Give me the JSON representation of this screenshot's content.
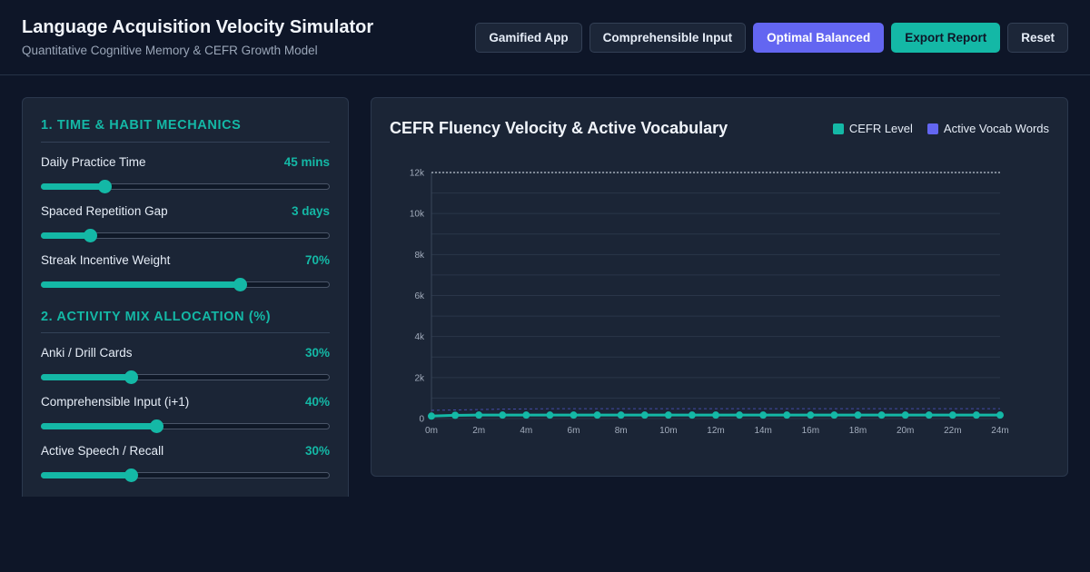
{
  "header": {
    "title": "Language Acquisition Velocity Simulator",
    "subtitle": "Quantitative Cognitive Memory & CEFR Growth Model",
    "buttons": {
      "gamified": "Gamified App",
      "comprehensible": "Comprehensible Input",
      "optimal": "Optimal Balanced",
      "export": "Export Report",
      "reset": "Reset"
    }
  },
  "controls": {
    "time_habit": {
      "title": "1. TIME & HABIT MECHANICS",
      "daily": {
        "label": "Daily Practice Time",
        "value": "45 mins",
        "fraction": 0.22
      },
      "gap": {
        "label": "Spaced Repetition Gap",
        "value": "3 days",
        "fraction": 0.17
      },
      "streak": {
        "label": "Streak Incentive Weight",
        "value": "70%",
        "fraction": 0.69
      }
    },
    "activity_mix": {
      "title": "2. ACTIVITY MIX ALLOCATION (%)",
      "anki": {
        "label": "Anki / Drill Cards",
        "value": "30%",
        "fraction": 0.31
      },
      "ci": {
        "label": "Comprehensible Input (i+1)",
        "value": "40%",
        "fraction": 0.4
      },
      "speech": {
        "label": "Active Speech / Recall",
        "value": "30%",
        "fraction": 0.31
      }
    }
  },
  "chart": {
    "title": "CEFR Fluency Velocity & Active Vocabulary",
    "legend": {
      "cefr": "CEFR Level",
      "vocab": "Active Vocab Words"
    },
    "colors": {
      "cefr": "#14b8a6",
      "vocab": "#6366f1",
      "reference": "#e6edf7"
    }
  },
  "chart_data": {
    "type": "line",
    "x": [
      0,
      1,
      2,
      3,
      4,
      5,
      6,
      7,
      8,
      9,
      10,
      11,
      12,
      13,
      14,
      15,
      16,
      17,
      18,
      19,
      20,
      21,
      22,
      23,
      24
    ],
    "xtick_labels": [
      "0m",
      "2m",
      "4m",
      "6m",
      "8m",
      "10m",
      "12m",
      "14m",
      "16m",
      "18m",
      "20m",
      "22m",
      "24m"
    ],
    "ytick_labels": [
      "0",
      "2k",
      "4k",
      "6k",
      "8k",
      "10k",
      "12k"
    ],
    "ylim": [
      0,
      12000
    ],
    "xlim": [
      0,
      24
    ],
    "reference_line": 12000,
    "grid": true,
    "legend_position": "top-right",
    "series": [
      {
        "name": "CEFR Level",
        "values": [
          120,
          160,
          170,
          170,
          170,
          170,
          170,
          170,
          170,
          170,
          170,
          170,
          170,
          170,
          170,
          170,
          170,
          170,
          170,
          170,
          170,
          170,
          170,
          170,
          170
        ]
      },
      {
        "name": "Active Vocab Words",
        "values": [
          400,
          420,
          440,
          460,
          470,
          480,
          480,
          480,
          480,
          480,
          480,
          480,
          480,
          480,
          480,
          480,
          480,
          480,
          480,
          480,
          480,
          480,
          480,
          480,
          480
        ]
      }
    ]
  }
}
